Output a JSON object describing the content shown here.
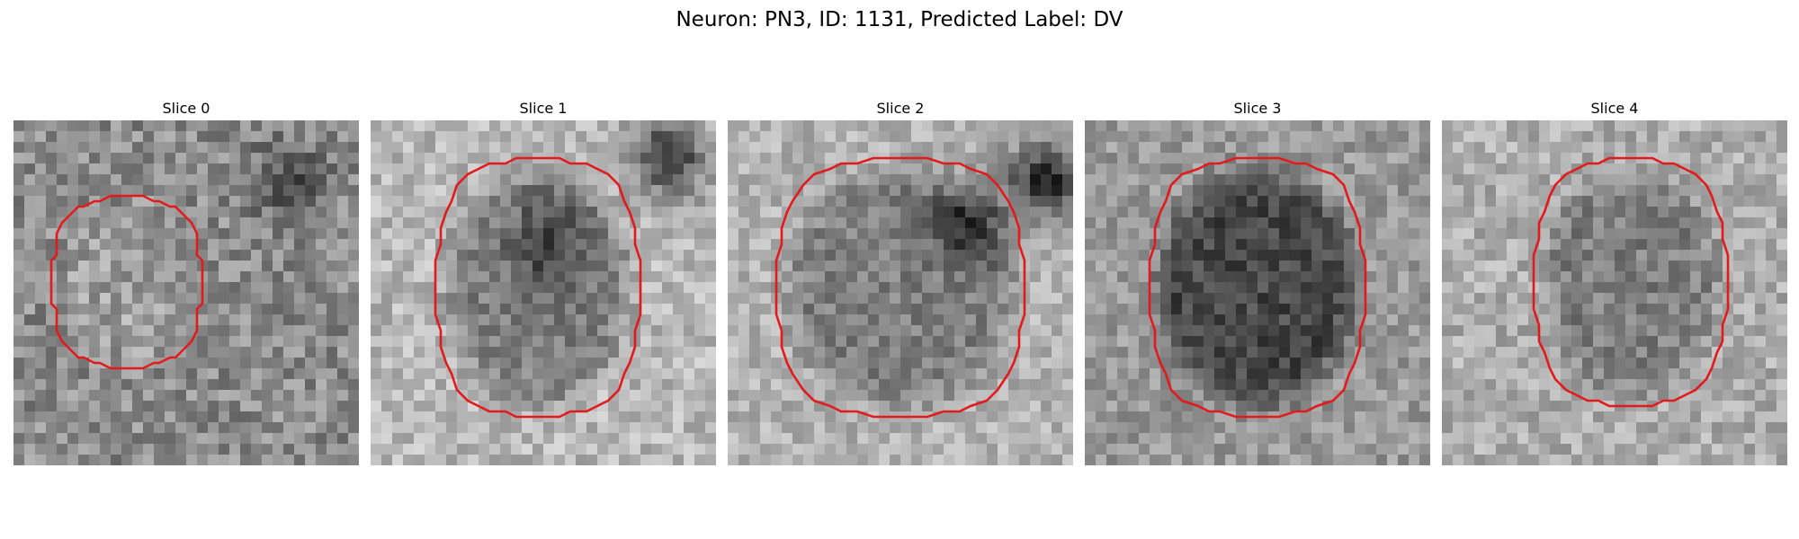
{
  "figure": {
    "title": "Neuron: PN3, ID: 1131, Predicted Label: DV"
  },
  "colors": {
    "contour": "#e31a1c"
  },
  "panels": [
    {
      "title": "Slice 0"
    },
    {
      "title": "Slice 1"
    },
    {
      "title": "Slice 2"
    },
    {
      "title": "Slice 3"
    },
    {
      "title": "Slice 4"
    }
  ]
}
